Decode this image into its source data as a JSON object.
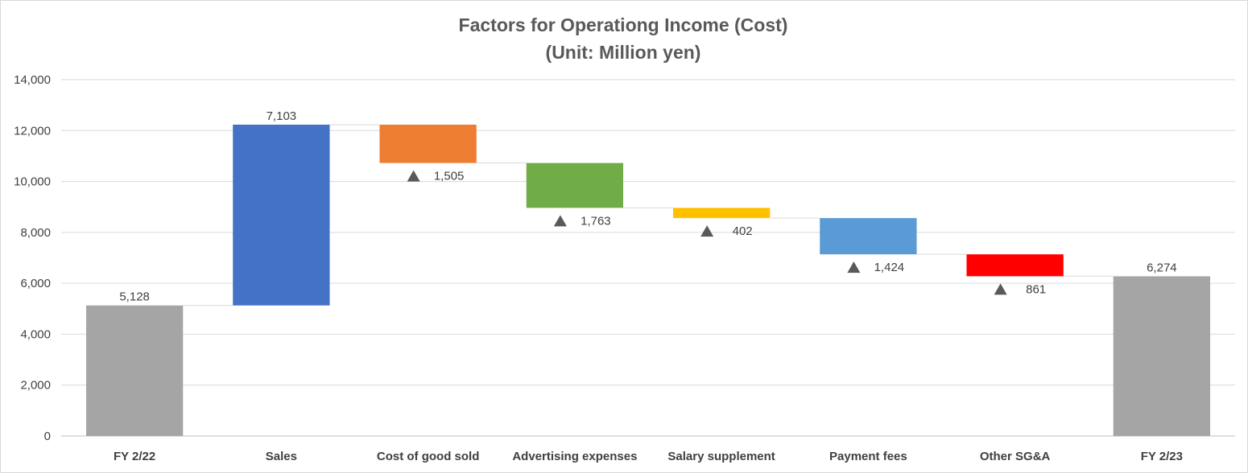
{
  "chart_data": {
    "type": "bar",
    "subtype": "waterfall",
    "title": "Factors for Operationg Income (Cost)",
    "subtitle": "(Unit: Million yen)",
    "xlabel": "",
    "ylabel": "",
    "ylim": [
      0,
      14000
    ],
    "yticks": [
      0,
      2000,
      4000,
      6000,
      8000,
      10000,
      12000,
      14000
    ],
    "ytick_labels": [
      "0",
      "2,000",
      "4,000",
      "6,000",
      "8,000",
      "10,000",
      "12,000",
      "14,000"
    ],
    "grid": true,
    "legend": "none",
    "decrease_marker": "▲",
    "categories": [
      "FY 2/22",
      "Sales",
      "Cost of good sold",
      "Advertising expenses",
      "Salary supplement",
      "Payment fees",
      "Other SG&A",
      "FY 2/23"
    ],
    "steps": [
      {
        "category": "FY 2/22",
        "kind": "total",
        "value": 5128,
        "label": "5,128",
        "color": "#a5a5a5"
      },
      {
        "category": "Sales",
        "kind": "increase",
        "value": 7103,
        "label": "7,103",
        "color": "#4472c4"
      },
      {
        "category": "Cost of good sold",
        "kind": "decrease",
        "value": 1505,
        "label": "1,505",
        "color": "#ed7d31"
      },
      {
        "category": "Advertising expenses",
        "kind": "decrease",
        "value": 1763,
        "label": "1,763",
        "color": "#70ad47"
      },
      {
        "category": "Salary supplement",
        "kind": "decrease",
        "value": 402,
        "label": "402",
        "color": "#ffc000"
      },
      {
        "category": "Payment fees",
        "kind": "decrease",
        "value": 1424,
        "label": "1,424",
        "color": "#5b9bd5"
      },
      {
        "category": "Other SG&A",
        "kind": "decrease",
        "value": 861,
        "label": "861",
        "color": "#ff0000"
      },
      {
        "category": "FY 2/23",
        "kind": "total",
        "value": 6274,
        "label": "6,274",
        "color": "#a5a5a5"
      }
    ]
  }
}
